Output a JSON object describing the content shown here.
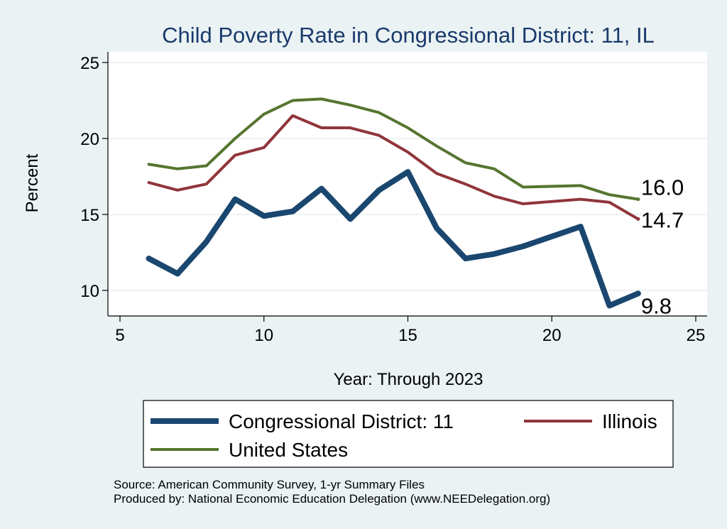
{
  "chart_data": {
    "type": "line",
    "title": "Child Poverty Rate in Congressional District:  11, IL",
    "xlabel": "Year: Through 2023",
    "ylabel": "Percent",
    "xlim": [
      5,
      25
    ],
    "ylim": [
      8.3,
      25.8
    ],
    "xticks": [
      5,
      10,
      15,
      20,
      25
    ],
    "yticks": [
      10,
      15,
      20,
      25
    ],
    "grid": true,
    "legend_position": "bottom",
    "series": [
      {
        "name": "Congressional District:  11",
        "color": "#1a476f",
        "x": [
          6,
          7,
          8,
          9,
          10,
          11,
          12,
          13,
          14,
          15,
          16,
          17,
          18,
          19,
          21,
          22,
          23
        ],
        "y": [
          12.1,
          11.1,
          13.2,
          16.0,
          14.9,
          15.2,
          16.7,
          14.7,
          16.6,
          17.8,
          14.1,
          12.1,
          12.4,
          12.9,
          14.2,
          9.0,
          9.8
        ],
        "end_label": "9.8"
      },
      {
        "name": "Illinois",
        "color": "#90353b",
        "x": [
          6,
          7,
          8,
          9,
          10,
          11,
          12,
          13,
          14,
          15,
          16,
          17,
          18,
          19,
          21,
          22,
          23
        ],
        "y": [
          17.1,
          16.6,
          17.0,
          18.9,
          19.4,
          21.5,
          20.7,
          20.7,
          20.2,
          19.1,
          17.7,
          17.0,
          16.2,
          15.7,
          16.0,
          15.8,
          14.7
        ],
        "end_label": "14.7"
      },
      {
        "name": "United States",
        "color": "#55752f",
        "x": [
          6,
          7,
          8,
          9,
          10,
          11,
          12,
          13,
          14,
          15,
          16,
          17,
          18,
          19,
          21,
          22,
          23
        ],
        "y": [
          18.3,
          18.0,
          18.2,
          20.0,
          21.6,
          22.5,
          22.6,
          22.2,
          21.7,
          20.7,
          19.5,
          18.4,
          18.0,
          16.8,
          16.9,
          16.3,
          16.0
        ],
        "end_label": "16.0"
      }
    ]
  },
  "footer": {
    "source": "Source: American Community Survey, 1-yr Summary Files",
    "produced": "Produced by: National Economic Education Delegation (www.NEEDelegation.org)"
  }
}
